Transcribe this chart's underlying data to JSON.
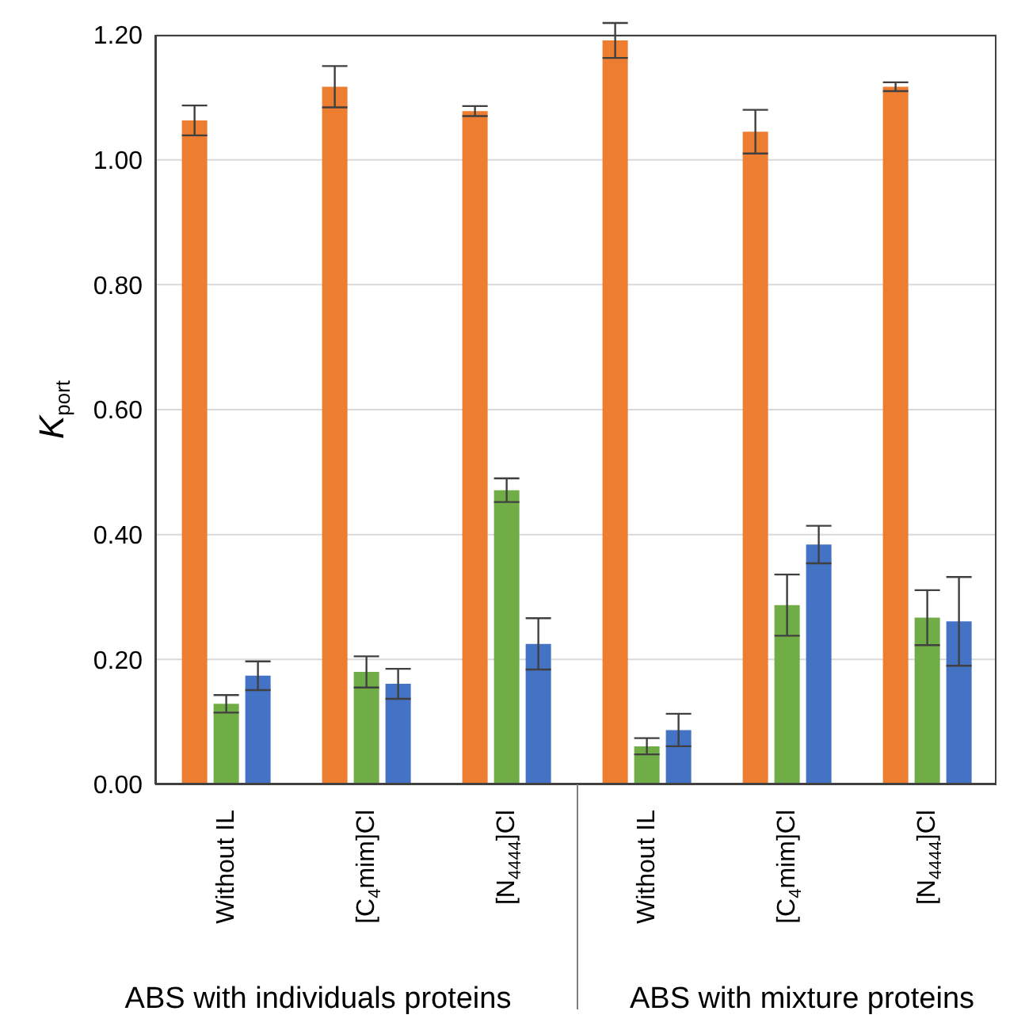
{
  "chart_data": {
    "type": "bar",
    "ylabel": "K$_{port}$",
    "categories": [
      "Without IL",
      "[C$_{4}$mim]Cl",
      "[N$_{4444}$]Cl",
      "Without IL",
      "[C$_{4}$mim]Cl",
      "[N$_{4444}$]Cl"
    ],
    "series": [
      {
        "color": "#ed7d31",
        "values": [
          1.063,
          1.117,
          1.078,
          1.191,
          1.045,
          1.117
        ],
        "errors": [
          0.024,
          0.033,
          0.008,
          0.028,
          0.035,
          0.007
        ]
      },
      {
        "color": "#70ad47",
        "values": [
          0.129,
          0.18,
          0.471,
          0.061,
          0.287,
          0.267
        ],
        "errors": [
          0.014,
          0.025,
          0.019,
          0.013,
          0.049,
          0.044
        ]
      },
      {
        "color": "#4472c4",
        "values": [
          0.174,
          0.161,
          0.225,
          0.087,
          0.384,
          0.261
        ],
        "errors": [
          0.023,
          0.024,
          0.041,
          0.026,
          0.03,
          0.071
        ]
      }
    ],
    "ylim": [
      0,
      1.2
    ],
    "yticks": [
      {
        "value": 0,
        "label": "0.00"
      },
      {
        "value": 0.2,
        "label": "0.20"
      },
      {
        "value": 0.4,
        "label": "0.40"
      },
      {
        "value": 0.6,
        "label": "0.60"
      },
      {
        "value": 0.8,
        "label": "0.80"
      },
      {
        "value": 1.0,
        "label": "1.00"
      },
      {
        "value": 1.2,
        "label": "1.20"
      }
    ],
    "grid": "y",
    "legend": false,
    "annotations": [
      "ABS with individuals proteins",
      "ABS with mixture proteins"
    ]
  }
}
